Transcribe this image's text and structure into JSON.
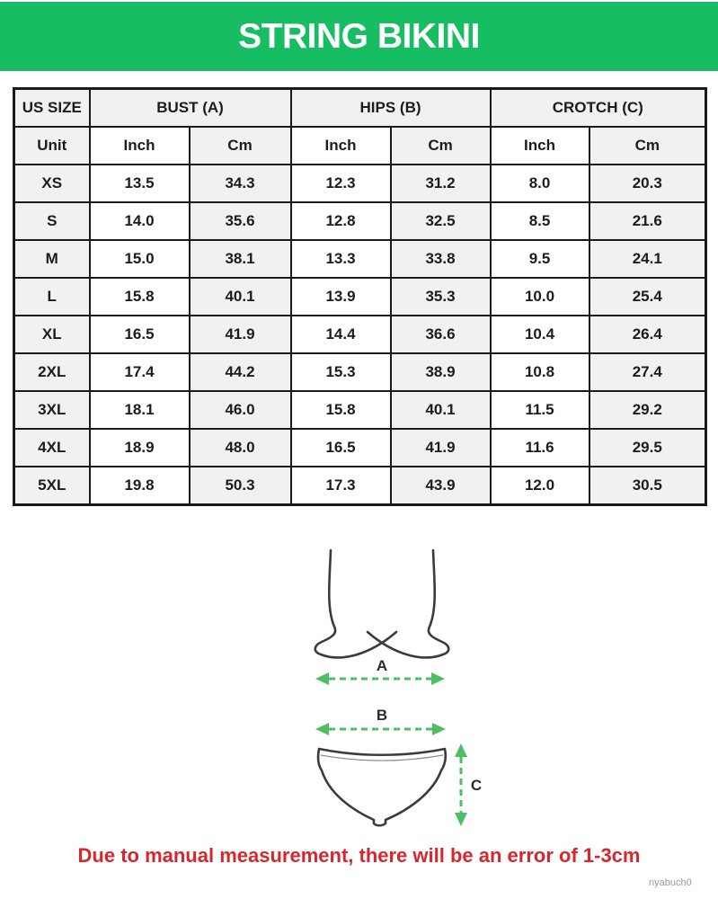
{
  "header": {
    "title": "STRING BIKINI",
    "bg_color": "#16bd63"
  },
  "table": {
    "size_header": "US SIZE",
    "groups": [
      {
        "label": "BUST (A)"
      },
      {
        "label": "HIPS (B)"
      },
      {
        "label": "CROTCH (C)"
      }
    ],
    "unit_label": "Unit",
    "units": [
      "Inch",
      "Cm",
      "Inch",
      "Cm",
      "Inch",
      "Cm"
    ],
    "rows": [
      {
        "size": "XS",
        "values": [
          "13.5",
          "34.3",
          "12.3",
          "31.2",
          "8.0",
          "20.3"
        ]
      },
      {
        "size": "S",
        "values": [
          "14.0",
          "35.6",
          "12.8",
          "32.5",
          "8.5",
          "21.6"
        ]
      },
      {
        "size": "M",
        "values": [
          "15.0",
          "38.1",
          "13.3",
          "33.8",
          "9.5",
          "24.1"
        ]
      },
      {
        "size": "L",
        "values": [
          "15.8",
          "40.1",
          "13.9",
          "35.3",
          "10.0",
          "25.4"
        ]
      },
      {
        "size": "XL",
        "values": [
          "16.5",
          "41.9",
          "14.4",
          "36.6",
          "10.4",
          "26.4"
        ]
      },
      {
        "size": "2XL",
        "values": [
          "17.4",
          "44.2",
          "15.3",
          "38.9",
          "10.8",
          "27.4"
        ]
      },
      {
        "size": "3XL",
        "values": [
          "18.1",
          "46.0",
          "15.8",
          "40.1",
          "11.5",
          "29.2"
        ]
      },
      {
        "size": "4XL",
        "values": [
          "18.9",
          "48.0",
          "16.5",
          "41.9",
          "11.6",
          "29.5"
        ]
      },
      {
        "size": "5XL",
        "values": [
          "19.8",
          "50.3",
          "17.3",
          "43.9",
          "12.0",
          "30.5"
        ]
      }
    ]
  },
  "diagram": {
    "label_a": "A",
    "label_b": "B",
    "label_c": "C",
    "arrow_color": "#4fbd63",
    "outline_color": "#3b3b3b"
  },
  "footer": {
    "notice": "Due to manual measurement, there will be an error of 1-3cm",
    "notice_color": "#d9262c",
    "watermark": "nyabuch0"
  }
}
